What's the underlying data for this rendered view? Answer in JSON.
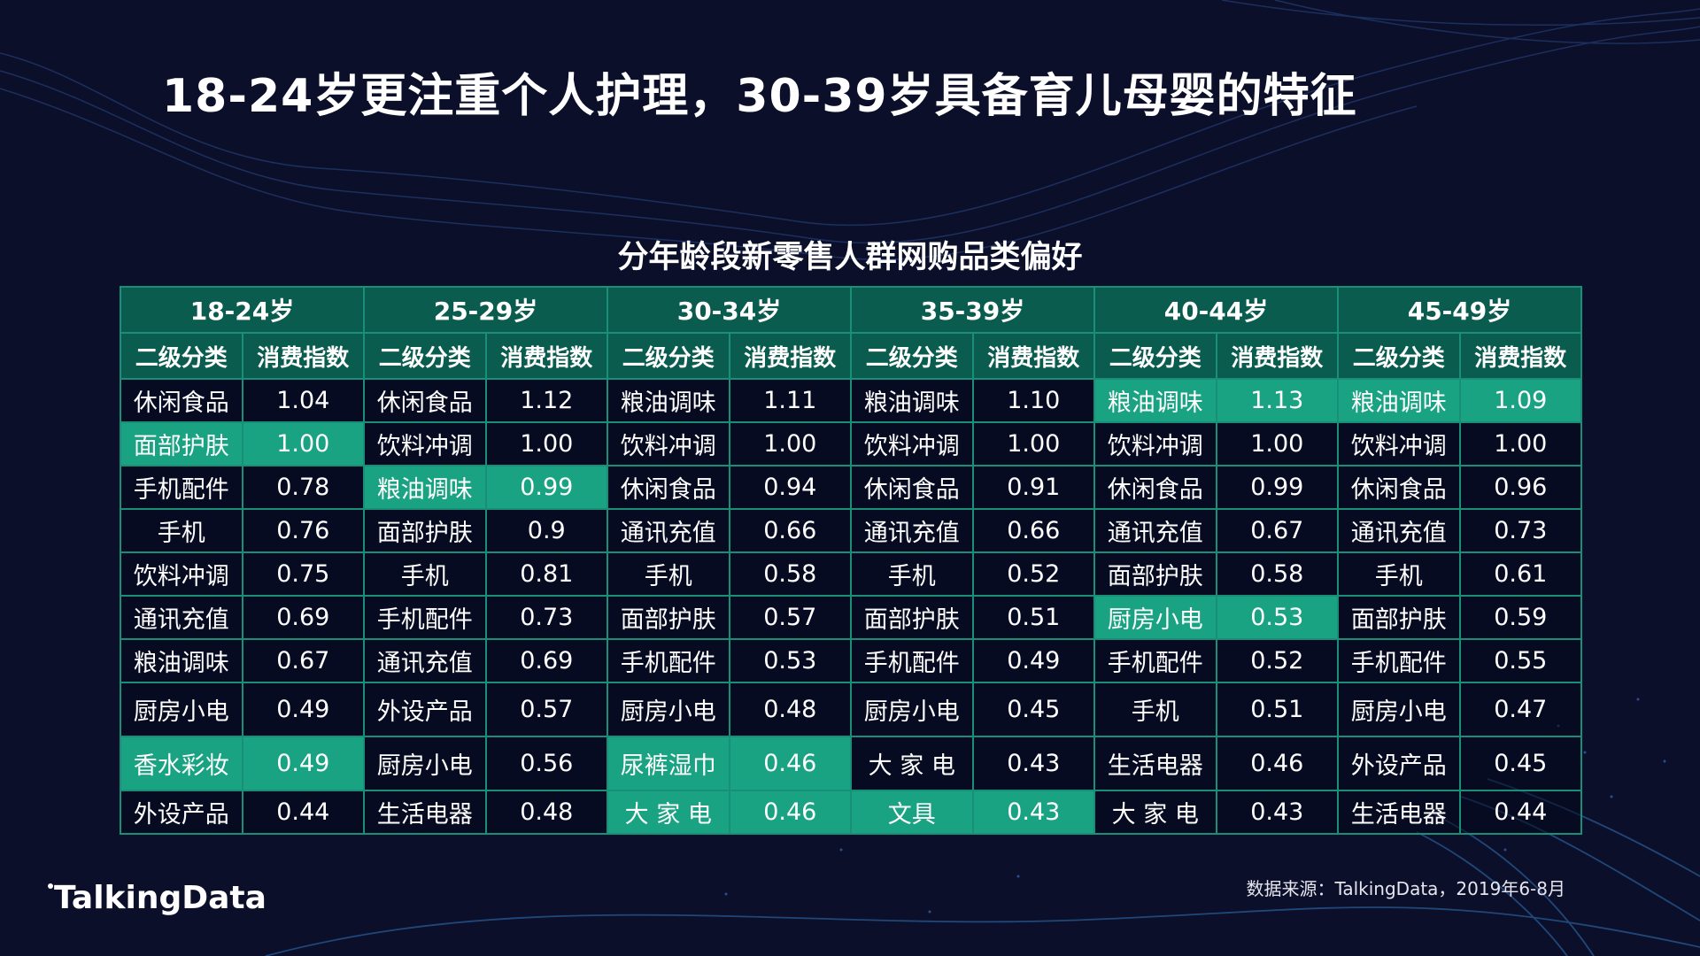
{
  "title": "18-24岁更注重个人护理，30-39岁具备育儿母婴的特征",
  "table_title": "分年龄段新零售人群网购品类偏好",
  "sub_headers": {
    "category": "二级分类",
    "index": "消费指数"
  },
  "groups": [
    {
      "label": "18-24岁",
      "rows": [
        {
          "cat": "休闲食品",
          "val": "1.04",
          "hl": false
        },
        {
          "cat": "面部护肤",
          "val": "1.00",
          "hl": true
        },
        {
          "cat": "手机配件",
          "val": "0.78",
          "hl": false
        },
        {
          "cat": "手机",
          "val": "0.76",
          "hl": false
        },
        {
          "cat": "饮料冲调",
          "val": "0.75",
          "hl": false
        },
        {
          "cat": "通讯充值",
          "val": "0.69",
          "hl": false
        },
        {
          "cat": "粮油调味",
          "val": "0.67",
          "hl": false
        },
        {
          "cat": "厨房小电",
          "val": "0.49",
          "hl": false
        },
        {
          "cat": "香水彩妆",
          "val": "0.49",
          "hl": true
        },
        {
          "cat": "外设产品",
          "val": "0.44",
          "hl": false
        }
      ]
    },
    {
      "label": "25-29岁",
      "rows": [
        {
          "cat": "休闲食品",
          "val": "1.12",
          "hl": false
        },
        {
          "cat": "饮料冲调",
          "val": "1.00",
          "hl": false
        },
        {
          "cat": "粮油调味",
          "val": "0.99",
          "hl": true
        },
        {
          "cat": "面部护肤",
          "val": "0.9",
          "hl": false
        },
        {
          "cat": "手机",
          "val": "0.81",
          "hl": false
        },
        {
          "cat": "手机配件",
          "val": "0.73",
          "hl": false
        },
        {
          "cat": "通讯充值",
          "val": "0.69",
          "hl": false
        },
        {
          "cat": "外设产品",
          "val": "0.57",
          "hl": false
        },
        {
          "cat": "厨房小电",
          "val": "0.56",
          "hl": false
        },
        {
          "cat": "生活电器",
          "val": "0.48",
          "hl": false
        }
      ]
    },
    {
      "label": "30-34岁",
      "rows": [
        {
          "cat": "粮油调味",
          "val": "1.11",
          "hl": false
        },
        {
          "cat": "饮料冲调",
          "val": "1.00",
          "hl": false
        },
        {
          "cat": "休闲食品",
          "val": "0.94",
          "hl": false
        },
        {
          "cat": "通讯充值",
          "val": "0.66",
          "hl": false
        },
        {
          "cat": "手机",
          "val": "0.58",
          "hl": false
        },
        {
          "cat": "面部护肤",
          "val": "0.57",
          "hl": false
        },
        {
          "cat": "手机配件",
          "val": "0.53",
          "hl": false
        },
        {
          "cat": "厨房小电",
          "val": "0.48",
          "hl": false
        },
        {
          "cat": "尿裤湿巾",
          "val": "0.46",
          "hl": true
        },
        {
          "cat": "大 家 电",
          "val": "0.46",
          "hl": true
        }
      ]
    },
    {
      "label": "35-39岁",
      "rows": [
        {
          "cat": "粮油调味",
          "val": "1.10",
          "hl": false
        },
        {
          "cat": "饮料冲调",
          "val": "1.00",
          "hl": false
        },
        {
          "cat": "休闲食品",
          "val": "0.91",
          "hl": false
        },
        {
          "cat": "通讯充值",
          "val": "0.66",
          "hl": false
        },
        {
          "cat": "手机",
          "val": "0.52",
          "hl": false
        },
        {
          "cat": "面部护肤",
          "val": "0.51",
          "hl": false
        },
        {
          "cat": "手机配件",
          "val": "0.49",
          "hl": false
        },
        {
          "cat": "厨房小电",
          "val": "0.45",
          "hl": false
        },
        {
          "cat": "大 家 电",
          "val": "0.43",
          "hl": false
        },
        {
          "cat": "文具",
          "val": "0.43",
          "hl": true
        }
      ]
    },
    {
      "label": "40-44岁",
      "rows": [
        {
          "cat": "粮油调味",
          "val": "1.13",
          "hl": true
        },
        {
          "cat": "饮料冲调",
          "val": "1.00",
          "hl": false
        },
        {
          "cat": "休闲食品",
          "val": "0.99",
          "hl": false
        },
        {
          "cat": "通讯充值",
          "val": "0.67",
          "hl": false
        },
        {
          "cat": "面部护肤",
          "val": "0.58",
          "hl": false
        },
        {
          "cat": "厨房小电",
          "val": "0.53",
          "hl": true
        },
        {
          "cat": "手机配件",
          "val": "0.52",
          "hl": false
        },
        {
          "cat": "手机",
          "val": "0.51",
          "hl": false
        },
        {
          "cat": "生活电器",
          "val": "0.46",
          "hl": false
        },
        {
          "cat": "大 家 电",
          "val": "0.43",
          "hl": false
        }
      ]
    },
    {
      "label": "45-49岁",
      "rows": [
        {
          "cat": "粮油调味",
          "val": "1.09",
          "hl": true
        },
        {
          "cat": "饮料冲调",
          "val": "1.00",
          "hl": false
        },
        {
          "cat": "休闲食品",
          "val": "0.96",
          "hl": false
        },
        {
          "cat": "通讯充值",
          "val": "0.73",
          "hl": false
        },
        {
          "cat": "手机",
          "val": "0.61",
          "hl": false
        },
        {
          "cat": "面部护肤",
          "val": "0.59",
          "hl": false
        },
        {
          "cat": "手机配件",
          "val": "0.55",
          "hl": false
        },
        {
          "cat": "厨房小电",
          "val": "0.47",
          "hl": false
        },
        {
          "cat": "外设产品",
          "val": "0.45",
          "hl": false
        },
        {
          "cat": "生活电器",
          "val": "0.44",
          "hl": false
        }
      ]
    }
  ],
  "source": "数据来源：TalkingData，2019年6-8月",
  "brand": "TalkingData",
  "colors": {
    "background": "#0b0f2a",
    "header_bg": "#0a5c4f",
    "highlight": "#19a382",
    "border": "#1a8f78",
    "wave_line": "#2a4a8a"
  }
}
